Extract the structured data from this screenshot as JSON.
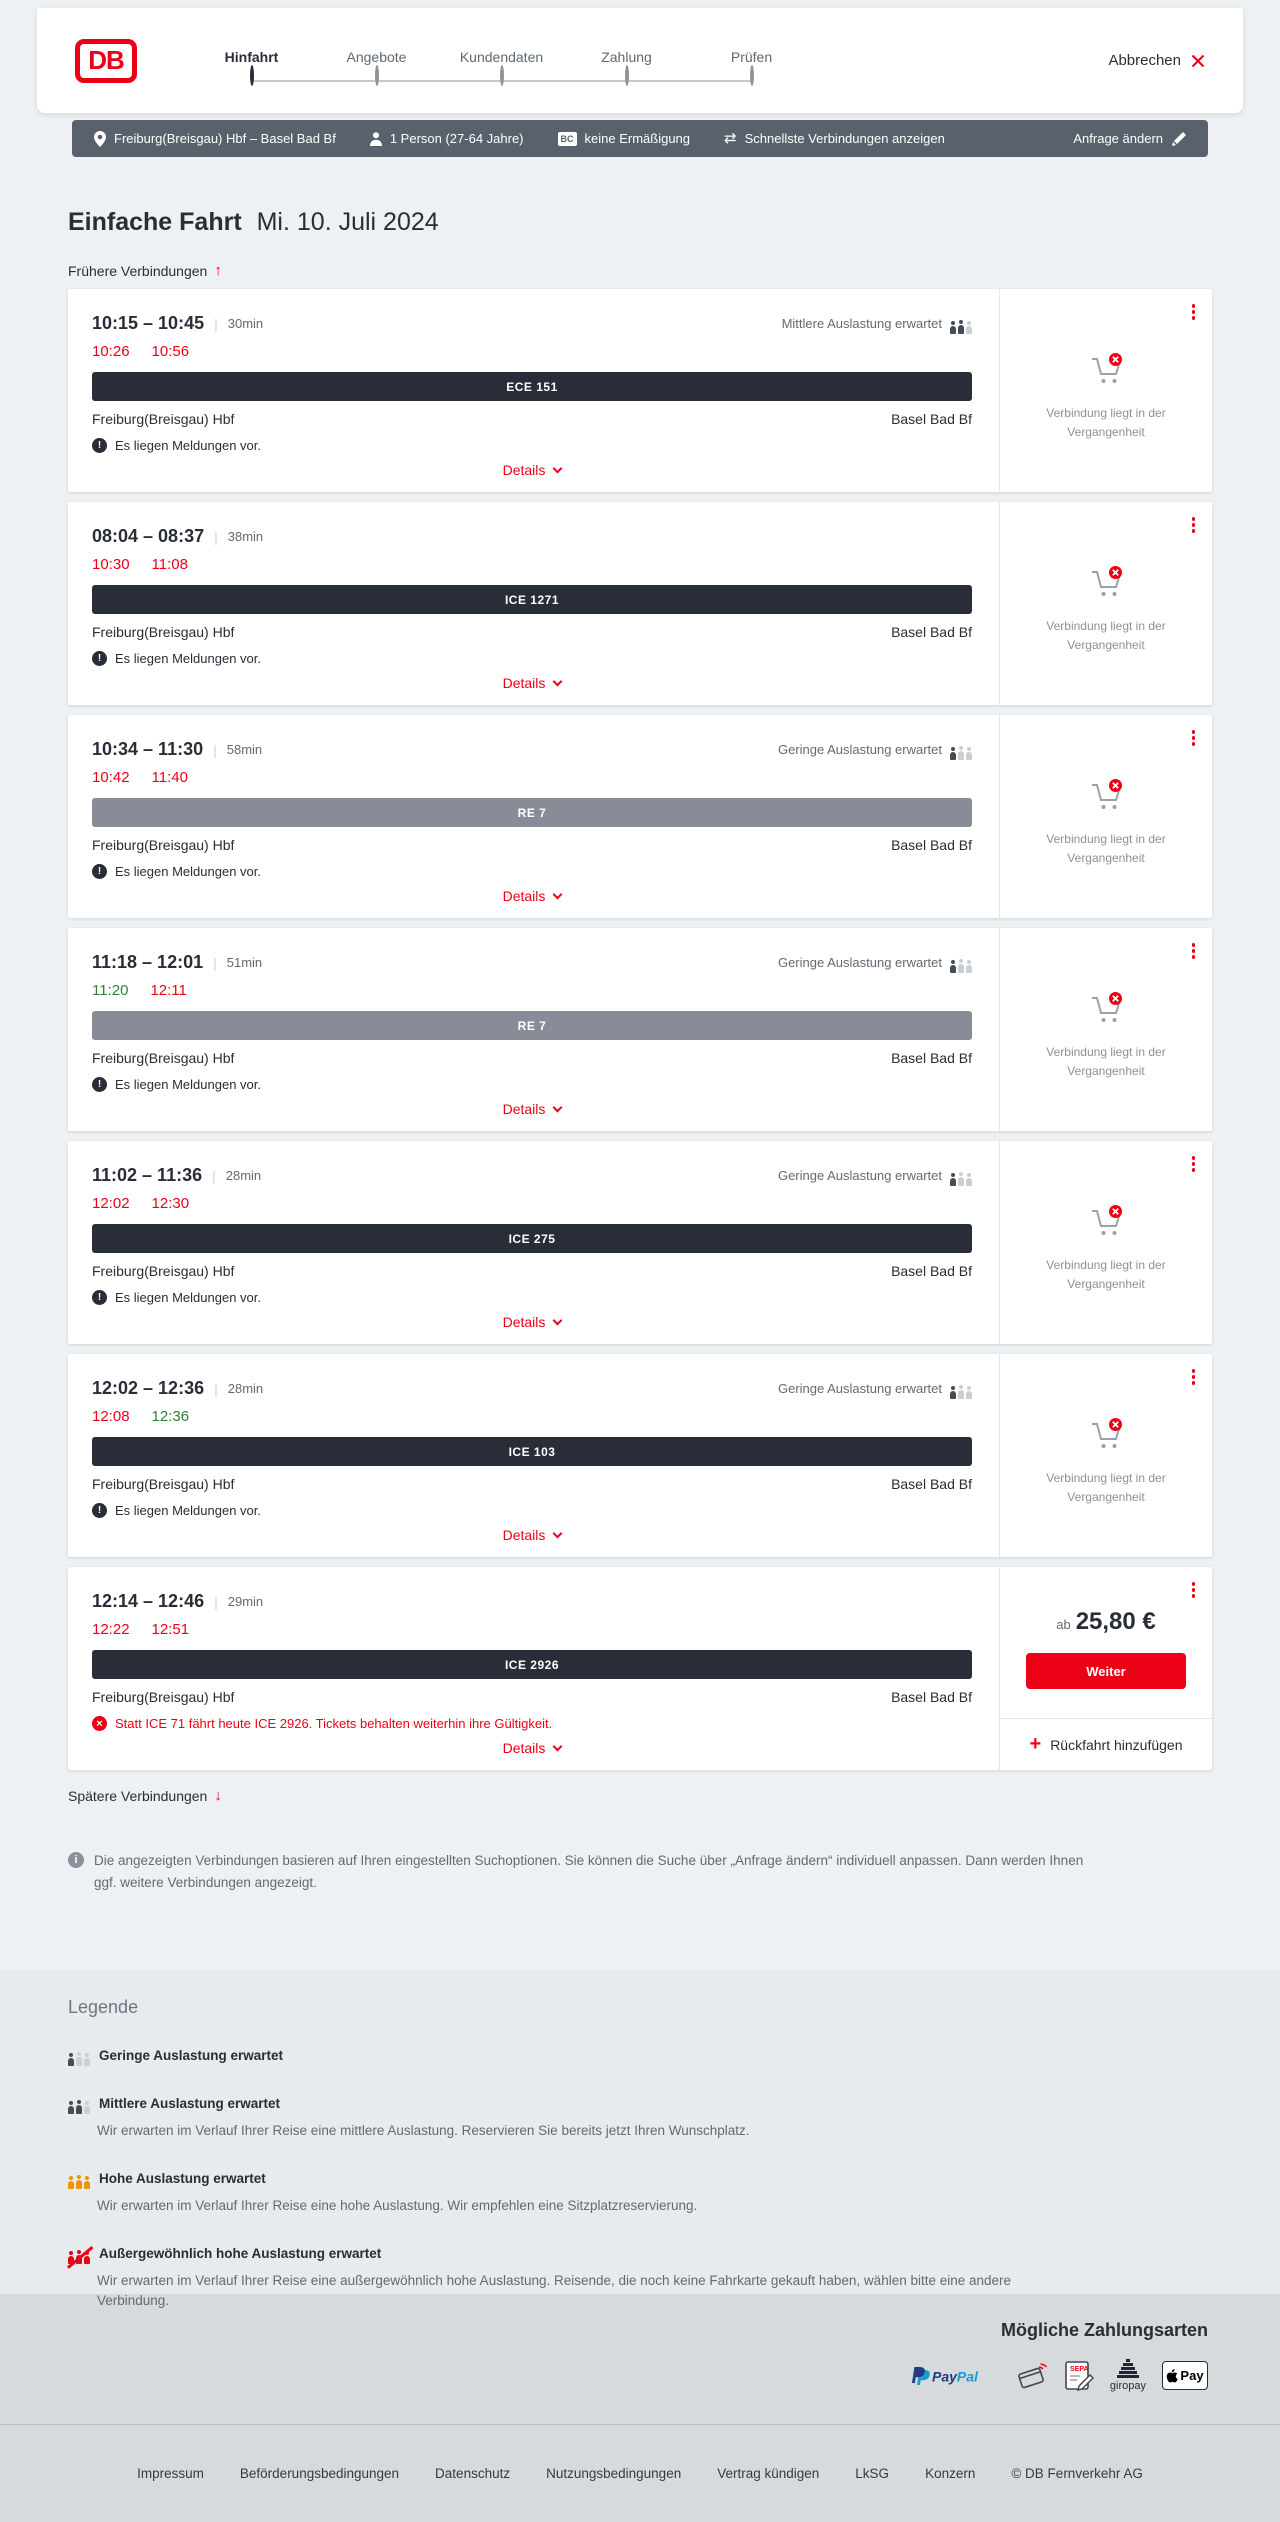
{
  "header": {
    "logo_text": "DB",
    "steps": [
      {
        "label": "Hinfahrt",
        "active": true
      },
      {
        "label": "Angebote",
        "active": false
      },
      {
        "label": "Kundendaten",
        "active": false
      },
      {
        "label": "Zahlung",
        "active": false
      },
      {
        "label": "Prüfen",
        "active": false
      }
    ],
    "cancel_label": "Abbrechen"
  },
  "filter_bar": {
    "route": "Freiburg(Breisgau) Hbf – Basel Bad Bf",
    "passengers": "1 Person (27-64 Jahre)",
    "discount_badge": "BC",
    "discount": "keine Ermäßigung",
    "fastest": "Schnellste Verbindungen anzeigen",
    "edit_label": "Anfrage ändern"
  },
  "page": {
    "title": "Einfache Fahrt",
    "date": "Mi. 10. Juli 2024",
    "earlier_label": "Frühere Verbindungen",
    "later_label": "Spätere Verbindungen",
    "info_note": "Die angezeigten Verbindungen basieren auf Ihren eingestellten Suchoptionen. Sie können die Suche über „Anfrage ändern“ individuell anpassen. Dann werden Ihnen ggf. weitere Verbindungen angezeigt."
  },
  "colors": {
    "brand_red": "#ec0016",
    "dark": "#282d37",
    "late_red": "#ec0016",
    "ontime_green": "#308136"
  },
  "connections": [
    {
      "time": "10:15 – 10:45",
      "duration": "30min",
      "delay_dep": "10:26",
      "delay_dep_status": "late",
      "delay_arr": "10:56",
      "delay_arr_status": "late",
      "train": "ECE 151",
      "train_style": "dark",
      "from": "Freiburg(Breisgau) Hbf",
      "to": "Basel Bad Bf",
      "occupancy": "Mittlere Auslastung erwartet",
      "occupancy_level": 2,
      "message": "Es liegen Meldungen vor.",
      "message_type": "info",
      "details_label": "Details",
      "side_type": "past",
      "side_label": "Verbindung liegt in der Vergangenheit"
    },
    {
      "time": "08:04 – 08:37",
      "duration": "38min",
      "delay_dep": "10:30",
      "delay_dep_status": "late",
      "delay_arr": "11:08",
      "delay_arr_status": "late",
      "train": "ICE 1271",
      "train_style": "dark",
      "from": "Freiburg(Breisgau) Hbf",
      "to": "Basel Bad Bf",
      "occupancy": null,
      "occupancy_level": 0,
      "message": "Es liegen Meldungen vor.",
      "message_type": "info",
      "details_label": "Details",
      "side_type": "past",
      "side_label": "Verbindung liegt in der Vergangenheit"
    },
    {
      "time": "10:34 – 11:30",
      "duration": "58min",
      "delay_dep": "10:42",
      "delay_dep_status": "late",
      "delay_arr": "11:40",
      "delay_arr_status": "late",
      "train": "RE 7",
      "train_style": "gray",
      "from": "Freiburg(Breisgau) Hbf",
      "to": "Basel Bad Bf",
      "occupancy": "Geringe Auslastung erwartet",
      "occupancy_level": 1,
      "message": "Es liegen Meldungen vor.",
      "message_type": "info",
      "details_label": "Details",
      "side_type": "past",
      "side_label": "Verbindung liegt in der Vergangenheit"
    },
    {
      "time": "11:18 – 12:01",
      "duration": "51min",
      "delay_dep": "11:20",
      "delay_dep_status": "ontime",
      "delay_arr": "12:11",
      "delay_arr_status": "late",
      "train": "RE 7",
      "train_style": "gray",
      "from": "Freiburg(Breisgau) Hbf",
      "to": "Basel Bad Bf",
      "occupancy": "Geringe Auslastung erwartet",
      "occupancy_level": 1,
      "message": "Es liegen Meldungen vor.",
      "message_type": "info",
      "details_label": "Details",
      "side_type": "past",
      "side_label": "Verbindung liegt in der Vergangenheit"
    },
    {
      "time": "11:02 – 11:36",
      "duration": "28min",
      "delay_dep": "12:02",
      "delay_dep_status": "late",
      "delay_arr": "12:30",
      "delay_arr_status": "late",
      "train": "ICE 275",
      "train_style": "dark",
      "from": "Freiburg(Breisgau) Hbf",
      "to": "Basel Bad Bf",
      "occupancy": "Geringe Auslastung erwartet",
      "occupancy_level": 1,
      "message": "Es liegen Meldungen vor.",
      "message_type": "info",
      "details_label": "Details",
      "side_type": "past",
      "side_label": "Verbindung liegt in der Vergangenheit"
    },
    {
      "time": "12:02 – 12:36",
      "duration": "28min",
      "delay_dep": "12:08",
      "delay_dep_status": "late",
      "delay_arr": "12:36",
      "delay_arr_status": "ontime",
      "train": "ICE 103",
      "train_style": "dark",
      "from": "Freiburg(Breisgau) Hbf",
      "to": "Basel Bad Bf",
      "occupancy": "Geringe Auslastung erwartet",
      "occupancy_level": 1,
      "message": "Es liegen Meldungen vor.",
      "message_type": "info",
      "details_label": "Details",
      "side_type": "past",
      "side_label": "Verbindung liegt in der Vergangenheit"
    },
    {
      "time": "12:14 – 12:46",
      "duration": "29min",
      "delay_dep": "12:22",
      "delay_dep_status": "late",
      "delay_arr": "12:51",
      "delay_arr_status": "late",
      "train": "ICE 2926",
      "train_style": "dark",
      "from": "Freiburg(Breisgau) Hbf",
      "to": "Basel Bad Bf",
      "occupancy": null,
      "occupancy_level": 0,
      "message": "Statt ICE 71 fährt heute ICE 2926. Tickets behalten weiterhin ihre Gültigkeit.",
      "message_type": "error",
      "details_label": "Details",
      "side_type": "price",
      "price_prefix": "ab",
      "price_amount": "25,80 €",
      "cta": "Weiter",
      "add_return": "Rückfahrt hinzufügen"
    }
  ],
  "legend": {
    "title": "Legende",
    "items": [
      {
        "level": 1,
        "title": "Geringe Auslastung erwartet",
        "desc": null
      },
      {
        "level": 2,
        "title": "Mittlere Auslastung erwartet",
        "desc": "Wir erwarten im Verlauf Ihrer Reise eine mittlere Auslastung. Reservieren Sie bereits jetzt Ihren Wunschplatz."
      },
      {
        "level": 3,
        "title": "Hohe Auslastung erwartet",
        "desc": "Wir erwarten im Verlauf Ihrer Reise eine hohe Auslastung. Wir empfehlen eine Sitzplatzreservierung."
      },
      {
        "level": 4,
        "title": "Außergewöhnlich hohe Auslastung erwartet",
        "desc": "Wir erwarten im Verlauf Ihrer Reise eine außergewöhnlich hohe Auslastung. Reisende, die noch keine Fahrkarte gekauft haben, wählen bitte eine andere Verbindung."
      }
    ]
  },
  "payment": {
    "title": "Mögliche Zahlungsarten",
    "methods": [
      "PayPal",
      "Kreditkarte",
      "SEPA-Lastschrift",
      "giropay",
      "Apple Pay"
    ],
    "paypal_pay": "Pay",
    "paypal_pal": "Pal",
    "sepa_text": "SEPA",
    "giropay_text": "giropay",
    "applepay_text": "Pay"
  },
  "footer": {
    "links": [
      "Impressum",
      "Beförderungsbedingungen",
      "Datenschutz",
      "Nutzungsbedingungen",
      "Vertrag kündigen",
      "LkSG",
      "Konzern"
    ],
    "copyright": "© DB Fernverkehr AG"
  }
}
